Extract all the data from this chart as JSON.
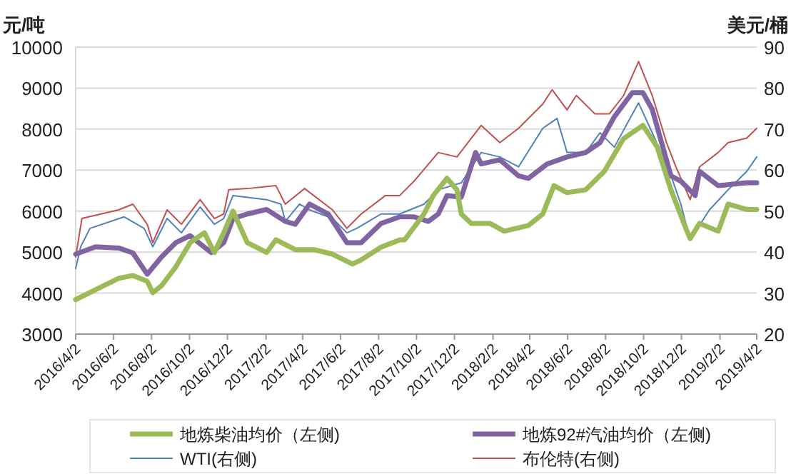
{
  "chart_data": {
    "type": "line",
    "ylabel": "元/吨",
    "y2label": "美元/桶",
    "ylim": [
      3000,
      10000
    ],
    "yticks": [
      3000,
      4000,
      5000,
      6000,
      7000,
      8000,
      9000,
      10000
    ],
    "y2lim": [
      20,
      90
    ],
    "y2ticks": [
      20,
      30,
      40,
      50,
      60,
      70,
      80,
      90
    ],
    "xlim": [
      "2016-04-02",
      "2019-04-02"
    ],
    "xticks": [
      {
        "value": "2016-04-02",
        "label": "2016/4/2"
      },
      {
        "value": "2016-06-02",
        "label": "2016/6/2"
      },
      {
        "value": "2016-08-02",
        "label": "2016/8/2"
      },
      {
        "value": "2016-10-02",
        "label": "2016/10/2"
      },
      {
        "value": "2016-12-02",
        "label": "2016/12/2"
      },
      {
        "value": "2017-02-02",
        "label": "2017/2/2"
      },
      {
        "value": "2017-04-02",
        "label": "2017/4/2"
      },
      {
        "value": "2017-06-02",
        "label": "2017/6/2"
      },
      {
        "value": "2017-08-02",
        "label": "2017/8/2"
      },
      {
        "value": "2017-10-02",
        "label": "2017/10/2"
      },
      {
        "value": "2017-12-02",
        "label": "2017/12/2"
      },
      {
        "value": "2018-02-02",
        "label": "2018/2/2"
      },
      {
        "value": "2018-04-02",
        "label": "2018/4/2"
      },
      {
        "value": "2018-06-02",
        "label": "2018/6/2"
      },
      {
        "value": "2018-08-02",
        "label": "2018/8/2"
      },
      {
        "value": "2018-10-02",
        "label": "2018/10/2"
      },
      {
        "value": "2018-12-02",
        "label": "2018/12/2"
      },
      {
        "value": "2019-02-02",
        "label": "2019/2/2"
      },
      {
        "value": "2019-04-02",
        "label": "2019/4/2"
      }
    ],
    "grid": "y",
    "legend": "bottom",
    "series": [
      {
        "name": "地炼柴油均价（左侧)",
        "color": "#9bbb59",
        "axis": "y",
        "x": [
          "2016-04-02",
          "2016-05-04",
          "2016-06-10",
          "2016-07-03",
          "2016-07-26",
          "2016-08-04",
          "2016-08-18",
          "2016-09-10",
          "2016-10-03",
          "2016-10-26",
          "2016-11-11",
          "2016-11-26",
          "2016-12-11",
          "2017-01-03",
          "2017-02-03",
          "2017-02-18",
          "2017-03-21",
          "2017-04-20",
          "2017-05-20",
          "2017-06-21",
          "2017-07-05",
          "2017-08-06",
          "2017-09-05",
          "2017-09-13",
          "2017-10-14",
          "2017-10-29",
          "2017-11-20",
          "2017-12-06",
          "2017-12-13",
          "2017-12-29",
          "2018-01-28",
          "2018-02-20",
          "2018-03-31",
          "2018-04-23",
          "2018-05-11",
          "2018-06-01",
          "2018-07-01",
          "2018-07-31",
          "2018-08-31",
          "2018-10-01",
          "2018-10-24",
          "2018-11-15",
          "2018-12-09",
          "2018-12-16",
          "2018-12-31",
          "2019-01-30",
          "2019-02-15",
          "2019-03-17",
          "2019-04-02"
        ],
        "values": [
          3840,
          4080,
          4360,
          4430,
          4290,
          4010,
          4180,
          4640,
          5230,
          5470,
          4990,
          5470,
          6000,
          5230,
          4990,
          5300,
          5060,
          5060,
          4950,
          4710,
          4810,
          5120,
          5300,
          5300,
          5930,
          6380,
          6800,
          6520,
          5930,
          5700,
          5700,
          5510,
          5650,
          5930,
          6620,
          6450,
          6520,
          6970,
          7770,
          8090,
          7560,
          6520,
          5580,
          5330,
          5700,
          5510,
          6170,
          6040,
          6040
        ]
      },
      {
        "name": "地炼92#汽油均价（左侧)",
        "color": "#8064a2",
        "axis": "y",
        "x": [
          "2016-04-02",
          "2016-05-04",
          "2016-06-10",
          "2016-07-03",
          "2016-07-26",
          "2016-08-18",
          "2016-09-10",
          "2016-10-03",
          "2016-10-26",
          "2016-11-06",
          "2016-11-26",
          "2016-12-11",
          "2017-01-03",
          "2017-02-03",
          "2017-03-05",
          "2017-03-21",
          "2017-04-13",
          "2017-05-13",
          "2017-06-12",
          "2017-07-05",
          "2017-08-06",
          "2017-09-05",
          "2017-09-28",
          "2017-10-21",
          "2017-11-06",
          "2017-11-20",
          "2017-12-13",
          "2018-01-05",
          "2018-01-14",
          "2018-02-13",
          "2018-03-15",
          "2018-03-31",
          "2018-04-30",
          "2018-06-01",
          "2018-07-01",
          "2018-07-24",
          "2018-08-16",
          "2018-09-14",
          "2018-10-01",
          "2018-10-16",
          "2018-11-15",
          "2018-12-01",
          "2018-12-24",
          "2018-12-31",
          "2019-01-30",
          "2019-03-17",
          "2019-04-02"
        ],
        "values": [
          4950,
          5130,
          5100,
          4980,
          4460,
          4880,
          5230,
          5400,
          5120,
          4990,
          5230,
          5820,
          5930,
          6040,
          5750,
          5680,
          6170,
          5930,
          5230,
          5230,
          5700,
          5860,
          5860,
          5750,
          5930,
          6380,
          6340,
          7430,
          7150,
          7250,
          6860,
          6800,
          7150,
          7320,
          7430,
          7670,
          8300,
          8890,
          8890,
          8480,
          6860,
          6730,
          6380,
          6970,
          6620,
          6690,
          6690
        ]
      },
      {
        "name": "WTI(右侧)",
        "color": "#4f81bd",
        "axis": "y2",
        "x": [
          "2016-04-02",
          "2016-04-10",
          "2016-04-25",
          "2016-06-19",
          "2016-07-21",
          "2016-08-04",
          "2016-08-27",
          "2016-09-19",
          "2016-10-19",
          "2016-11-11",
          "2016-11-26",
          "2016-12-11",
          "2017-02-03",
          "2017-02-26",
          "2017-03-05",
          "2017-03-28",
          "2017-04-13",
          "2017-05-20",
          "2017-06-12",
          "2017-06-28",
          "2017-08-06",
          "2017-09-05",
          "2017-10-14",
          "2017-11-06",
          "2017-12-13",
          "2018-01-14",
          "2018-02-13",
          "2018-03-15",
          "2018-04-23",
          "2018-05-16",
          "2018-06-01",
          "2018-07-01",
          "2018-07-24",
          "2018-08-16",
          "2018-09-24",
          "2018-10-16",
          "2018-11-15",
          "2018-12-01",
          "2018-12-16",
          "2019-01-16",
          "2019-02-15",
          "2019-03-17",
          "2019-04-02"
        ],
        "values": [
          36.0,
          41.3,
          45.8,
          48.6,
          45.8,
          41.3,
          48.2,
          44.7,
          51.0,
          46.8,
          48.2,
          53.8,
          52.8,
          51.7,
          47.5,
          51.7,
          50.3,
          48.2,
          44.7,
          45.8,
          49.3,
          49.3,
          51.7,
          55.2,
          56.9,
          64.3,
          63.2,
          60.8,
          70.2,
          72.6,
          64.3,
          64.3,
          69.1,
          65.6,
          76.4,
          69.1,
          58.7,
          51.7,
          43.0,
          50.3,
          55.2,
          59.7,
          63.2
        ]
      },
      {
        "name": "布伦特(右侧)",
        "color": "#c0504d",
        "axis": "y2",
        "x": [
          "2016-04-02",
          "2016-04-12",
          "2016-06-10",
          "2016-07-03",
          "2016-07-26",
          "2016-08-04",
          "2016-08-27",
          "2016-09-19",
          "2016-10-19",
          "2016-11-11",
          "2016-11-26",
          "2016-12-04",
          "2017-01-03",
          "2017-02-18",
          "2017-03-05",
          "2017-04-05",
          "2017-05-20",
          "2017-06-12",
          "2017-07-05",
          "2017-08-13",
          "2017-09-05",
          "2017-09-28",
          "2017-11-06",
          "2017-12-06",
          "2018-01-14",
          "2018-02-13",
          "2018-03-15",
          "2018-04-23",
          "2018-05-08",
          "2018-06-01",
          "2018-06-16",
          "2018-07-16",
          "2018-08-08",
          "2018-08-31",
          "2018-09-24",
          "2018-10-16",
          "2018-11-08",
          "2018-11-23",
          "2018-12-16",
          "2018-12-31",
          "2019-01-30",
          "2019-02-15",
          "2019-03-17",
          "2019-04-02"
        ],
        "values": [
          38.8,
          48.2,
          50.3,
          51.7,
          46.8,
          42.3,
          50.3,
          46.8,
          52.8,
          48.2,
          49.3,
          55.2,
          55.5,
          56.2,
          51.7,
          55.5,
          50.3,
          45.8,
          49.3,
          53.8,
          53.8,
          57.3,
          64.3,
          63.2,
          70.9,
          66.7,
          70.2,
          76.1,
          79.6,
          74.7,
          78.2,
          73.7,
          73.7,
          78.2,
          86.5,
          78.2,
          66.7,
          60.8,
          52.8,
          60.8,
          64.3,
          66.7,
          67.8,
          70.2
        ]
      }
    ]
  }
}
